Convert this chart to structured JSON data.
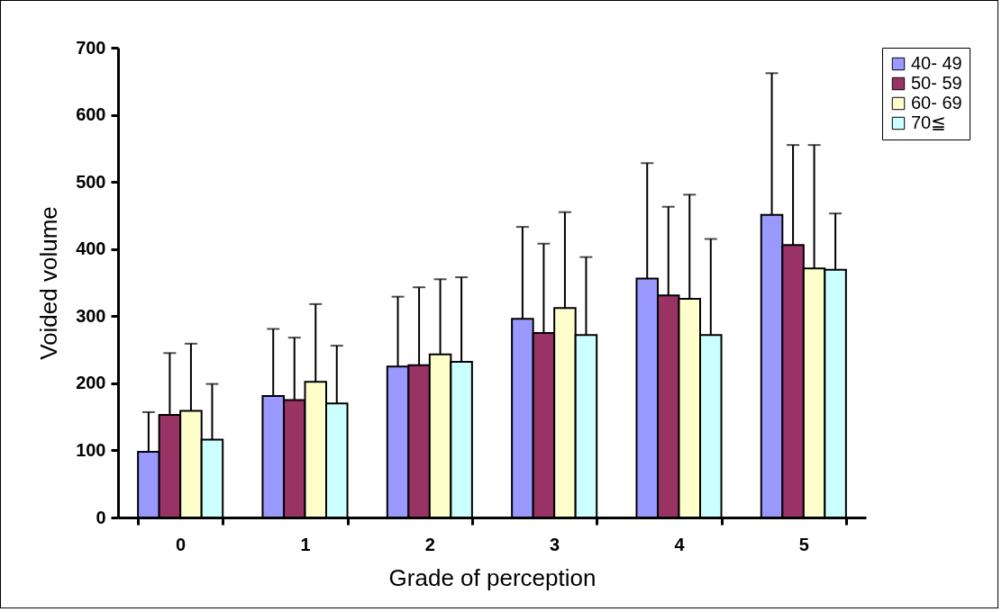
{
  "chart_data": {
    "type": "bar",
    "xlabel": "Grade of perception",
    "ylabel": "Voided volume",
    "categories": [
      "0",
      "1",
      "2",
      "3",
      "4",
      "5"
    ],
    "series": [
      {
        "name": "40- 49",
        "color": "#9999ff",
        "values": [
          98,
          181,
          225,
          296,
          356,
          451
        ],
        "errors": [
          [
            98,
            157
          ],
          [
            181,
            281
          ],
          [
            225,
            329
          ],
          [
            296,
            433
          ],
          [
            356,
            528
          ],
          [
            451,
            662
          ]
        ]
      },
      {
        "name": "50- 59",
        "color": "#993366",
        "values": [
          153,
          175,
          227,
          275,
          331,
          406
        ],
        "errors": [
          [
            153,
            245
          ],
          [
            175,
            268
          ],
          [
            227,
            343
          ],
          [
            275,
            408
          ],
          [
            331,
            463
          ],
          [
            406,
            555
          ]
        ]
      },
      {
        "name": "60- 69",
        "color": "#ffffcc",
        "values": [
          159,
          202,
          243,
          312,
          326,
          371
        ],
        "errors": [
          [
            159,
            259
          ],
          [
            202,
            318
          ],
          [
            243,
            355
          ],
          [
            312,
            455
          ],
          [
            326,
            481
          ],
          [
            371,
            555
          ]
        ]
      },
      {
        "name": "70≦",
        "color": "#ccffff",
        "values": [
          116,
          170,
          232,
          272,
          272,
          369
        ],
        "errors": [
          [
            116,
            199
          ],
          [
            170,
            256
          ],
          [
            232,
            358
          ],
          [
            272,
            388
          ],
          [
            272,
            415
          ],
          [
            369,
            453
          ]
        ]
      }
    ],
    "ylim": [
      0,
      700
    ],
    "yticks": [
      0,
      100,
      200,
      300,
      400,
      500,
      600,
      700
    ],
    "grid": false,
    "legend": "right"
  }
}
